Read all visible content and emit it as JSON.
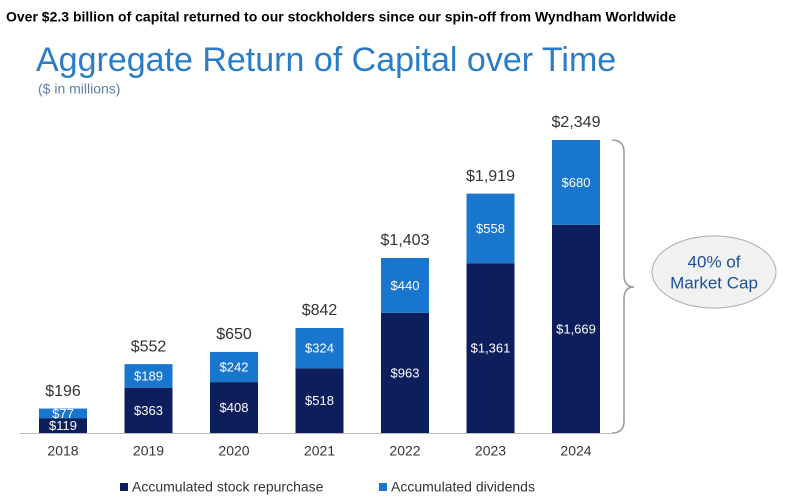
{
  "header": "Over $2.3 billion of capital returned to our stockholders since our spin-off from Wyndham Worldwide",
  "chart_data": {
    "type": "stacked-bar",
    "title": "Aggregate Return of Capital over Time",
    "subtitle": "($ in millions)",
    "categories": [
      "2018",
      "2019",
      "2020",
      "2021",
      "2022",
      "2023",
      "2024"
    ],
    "series": [
      {
        "name": "Accumulated stock repurchase",
        "color": "#0c1e5b",
        "values": [
          119,
          363,
          408,
          518,
          963,
          1361,
          1669
        ],
        "value_labels": [
          "$119",
          "$363",
          "$408",
          "$518",
          "$963",
          "$1,361",
          "$1,669"
        ]
      },
      {
        "name": "Accumulated dividends",
        "color": "#1876cf",
        "values": [
          77,
          189,
          242,
          324,
          440,
          558,
          680
        ],
        "value_labels": [
          "$77",
          "$189",
          "$242",
          "$324",
          "$440",
          "$558",
          "$680"
        ]
      }
    ],
    "totals": [
      196,
      552,
      650,
      842,
      1403,
      1919,
      2349
    ],
    "total_labels": [
      "$196",
      "$552",
      "$650",
      "$842",
      "$1,403",
      "$1,919",
      "$2,349"
    ],
    "annotation": [
      "40% of",
      "Market Cap"
    ]
  }
}
